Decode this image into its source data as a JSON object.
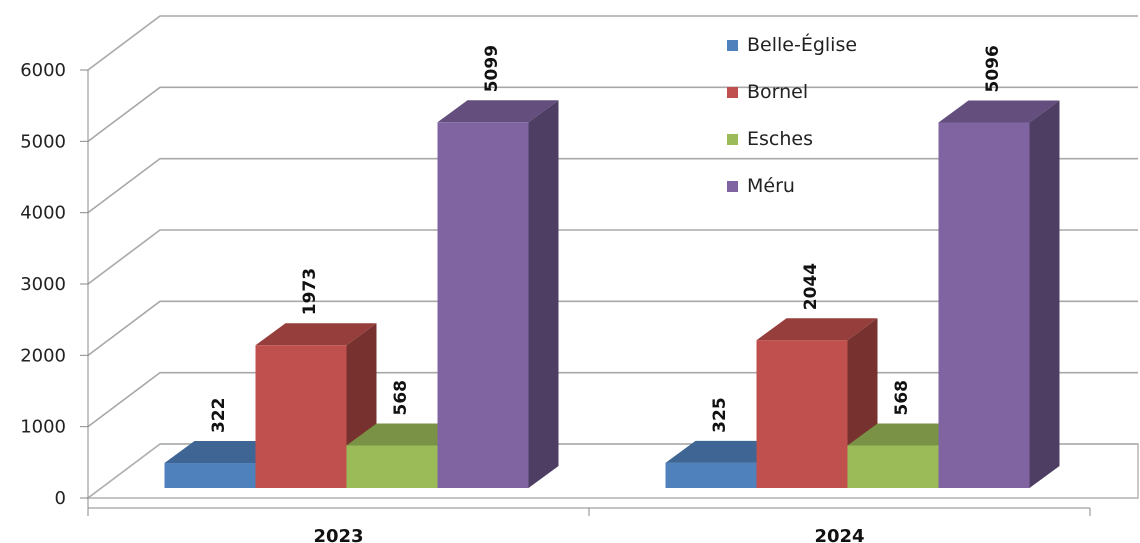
{
  "chart_data": {
    "type": "bar",
    "categories": [
      "2023",
      "2024"
    ],
    "series": [
      {
        "name": "Belle-Église",
        "values": [
          322,
          325
        ],
        "color": "#4F81BD"
      },
      {
        "name": "Bornel",
        "values": [
          1973,
          2044
        ],
        "color": "#C0504D"
      },
      {
        "name": "Esches",
        "values": [
          568,
          568
        ],
        "color": "#9BBB59"
      },
      {
        "name": "Méru",
        "values": [
          5099,
          5096
        ],
        "color": "#8064A2"
      }
    ],
    "y_ticks": [
      "0",
      "1000",
      "2000",
      "3000",
      "4000",
      "5000",
      "6000"
    ],
    "ylim": [
      0,
      6000
    ],
    "grid": true,
    "legend_position": "top-right",
    "style": "3d-clustered-column"
  }
}
